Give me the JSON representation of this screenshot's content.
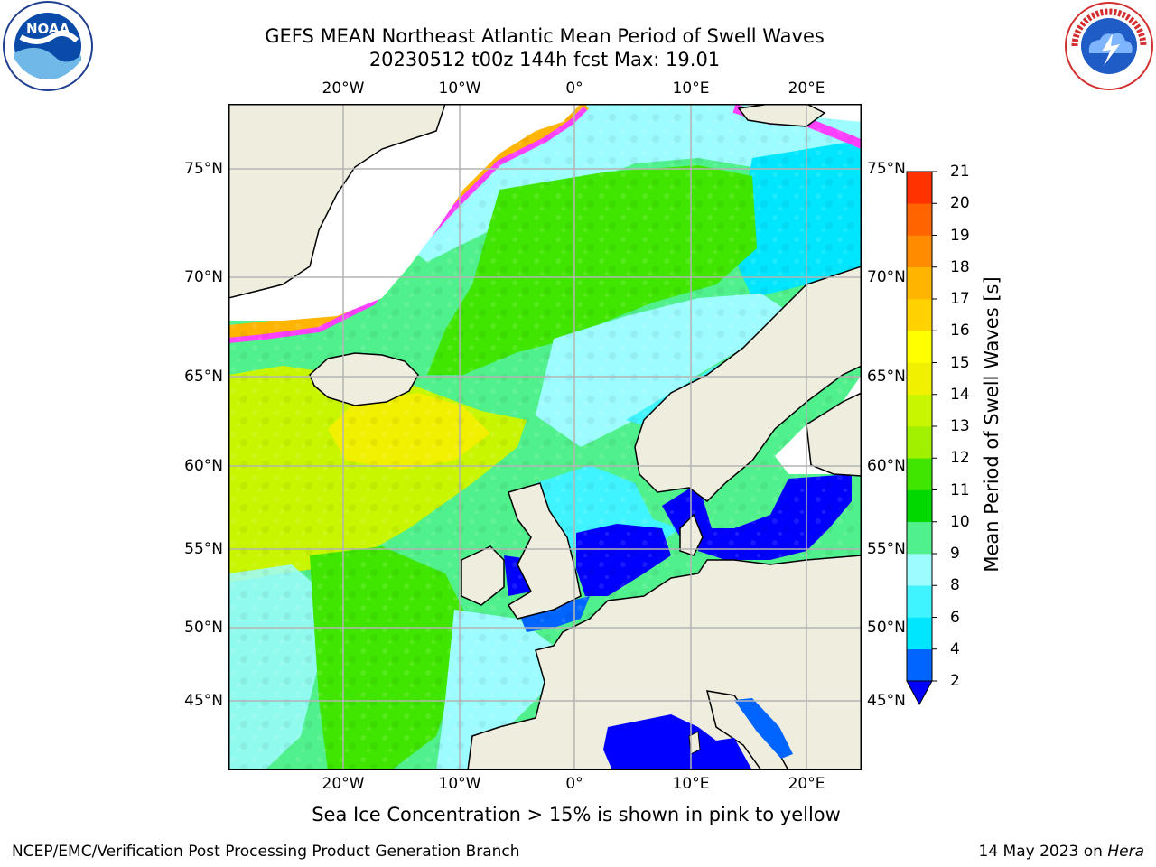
{
  "title": {
    "line1": "GEFS MEAN Northeast Atlantic Mean Period of Swell Waves",
    "line2": "20230512 t00z 144h fcst   Max: 19.01"
  },
  "logos": {
    "left": {
      "icon": "noaa-logo-icon",
      "text": "NOAA"
    },
    "right": {
      "icon": "nws-logo-icon",
      "text": "NATIONAL WEATHER SERVICE"
    }
  },
  "map": {
    "lon_labels": [
      "20°W",
      "10°W",
      "0°",
      "10°E",
      "20°E"
    ],
    "lat_labels": [
      "75°N",
      "70°N",
      "65°N",
      "60°N",
      "55°N",
      "50°N",
      "45°N"
    ],
    "lon_range": [
      -30,
      25
    ],
    "lat_range": [
      41,
      78
    ],
    "colors": {
      "land": "#efedde",
      "grid": "#b4b4b4",
      "coast": "#000000",
      "no_data": "#ffffff"
    }
  },
  "colorbar": {
    "label": "Mean Period of Swell Waves [s]",
    "levels": [
      "2",
      "4",
      "6",
      "8",
      "9",
      "10",
      "11",
      "12",
      "13",
      "14",
      "15",
      "16",
      "17",
      "18",
      "19",
      "20",
      "21"
    ],
    "colors": [
      "#0064ff",
      "#00e6ff",
      "#40f4ff",
      "#9cfcff",
      "#50f08c",
      "#00d800",
      "#40e600",
      "#a0f000",
      "#c8f500",
      "#f0f000",
      "#ffff00",
      "#ffd200",
      "#ffb400",
      "#ff8c00",
      "#ff6400",
      "#ff3200"
    ],
    "under_color": "#0000ff",
    "extend": "min"
  },
  "caption": "Sea Ice Concentration > 15% is shown in pink to yellow",
  "footer": {
    "left": "NCEP/EMC/Verification Post Processing Product Generation Branch",
    "right_date": "14 May 2023 on",
    "right_host": "Hera"
  }
}
